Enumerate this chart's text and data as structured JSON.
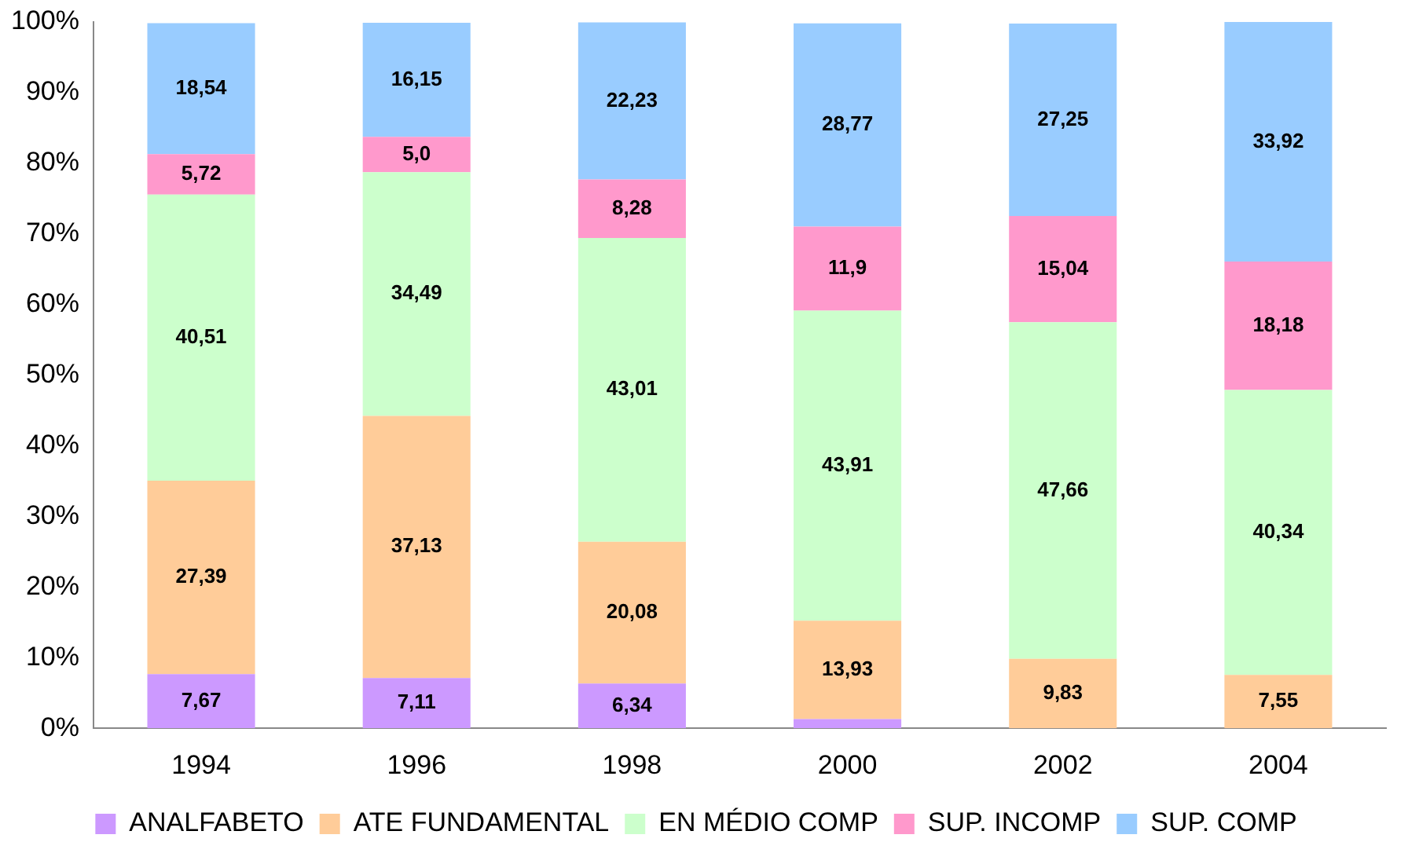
{
  "chart_data": {
    "type": "bar",
    "stacked": true,
    "categories": [
      "1994",
      "1996",
      "1998",
      "2000",
      "2002",
      "2004"
    ],
    "series": [
      {
        "name": "ANALFABETO",
        "color": "#cc99ff",
        "values": [
          7.67,
          7.11,
          6.34,
          1.3,
          null,
          null
        ],
        "value_labels": [
          "7,67",
          "7,11",
          "6,34",
          null,
          null,
          null
        ]
      },
      {
        "name": "ATE FUNDAMENTAL",
        "color": "#ffcc99",
        "values": [
          27.39,
          37.13,
          20.08,
          13.93,
          9.83,
          7.55
        ],
        "value_labels": [
          "27,39",
          "37,13",
          "20,08",
          "13,93",
          "9,83",
          "7,55"
        ]
      },
      {
        "name": "EN MÉDIO COMP",
        "color": "#ccffcc",
        "values": [
          40.51,
          34.49,
          43.01,
          43.91,
          47.66,
          40.34
        ],
        "value_labels": [
          "40,51",
          "34,49",
          "43,01",
          "43,91",
          "47,66",
          "40,34"
        ]
      },
      {
        "name": "SUP. INCOMP",
        "color": "#ff99cc",
        "values": [
          5.72,
          5.0,
          8.28,
          11.9,
          15.04,
          18.18
        ],
        "value_labels": [
          "5,72",
          "5,0",
          "8,28",
          "11,9",
          "15,04",
          "18,18"
        ]
      },
      {
        "name": "SUP. COMP",
        "color": "#99ccff",
        "values": [
          18.54,
          16.15,
          22.23,
          28.77,
          27.25,
          33.92
        ],
        "value_labels": [
          "18,54",
          "16,15",
          "22,23",
          "28,77",
          "27,25",
          "33,92"
        ]
      }
    ],
    "ylim": [
      0,
      100
    ],
    "yticks": [
      {
        "value": 0,
        "label": "0%"
      },
      {
        "value": 10,
        "label": "10%"
      },
      {
        "value": 20,
        "label": "20%"
      },
      {
        "value": 30,
        "label": "30%"
      },
      {
        "value": 40,
        "label": "40%"
      },
      {
        "value": 50,
        "label": "50%"
      },
      {
        "value": 60,
        "label": "60%"
      },
      {
        "value": 70,
        "label": "70%"
      },
      {
        "value": 80,
        "label": "80%"
      },
      {
        "value": 90,
        "label": "90%"
      },
      {
        "value": 100,
        "label": "100%"
      }
    ],
    "grid": false,
    "legend": "bottom"
  }
}
